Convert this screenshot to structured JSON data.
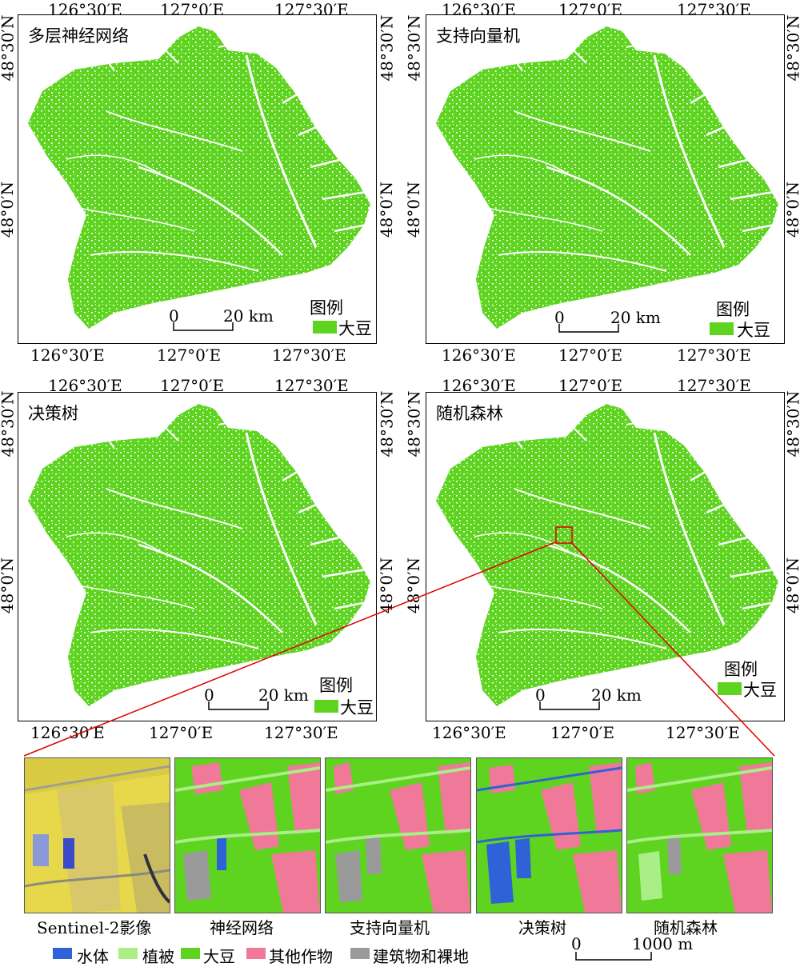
{
  "colors": {
    "soybean": "#5ed420",
    "water": "#2f62d6",
    "vegetation": "#a9ee86",
    "other_crops": "#f07898",
    "buildings": "#9a9a9a",
    "sentinel_yellow": "#e6d84a",
    "inset_line": "#e00000"
  },
  "axis": {
    "lon_ticks": [
      "126°30′E",
      "127°0′E",
      "127°30′E"
    ],
    "lat_ticks": [
      "48°30′N",
      "48°0′N"
    ]
  },
  "panels": [
    {
      "title": "多层神经网络"
    },
    {
      "title": "支持向量机"
    },
    {
      "title": "决策树"
    },
    {
      "title": "随机森林"
    }
  ],
  "legend": {
    "title": "图例",
    "item": "大豆"
  },
  "scalebar": {
    "zero": "0",
    "end": "20 km"
  },
  "thumbnails": [
    "Sentinel-2影像",
    "神经网络",
    "支持向量机",
    "决策树",
    "随机森林"
  ],
  "bottom_legend": [
    {
      "label": "水体",
      "color": "#2f62d6"
    },
    {
      "label": "植被",
      "color": "#a9ee86"
    },
    {
      "label": "大豆",
      "color": "#5ed420"
    },
    {
      "label": "其他作物",
      "color": "#f07898"
    },
    {
      "label": "建筑物和裸地",
      "color": "#9a9a9a"
    }
  ],
  "bottom_scalebar": {
    "zero": "0",
    "end": "1000 m"
  }
}
